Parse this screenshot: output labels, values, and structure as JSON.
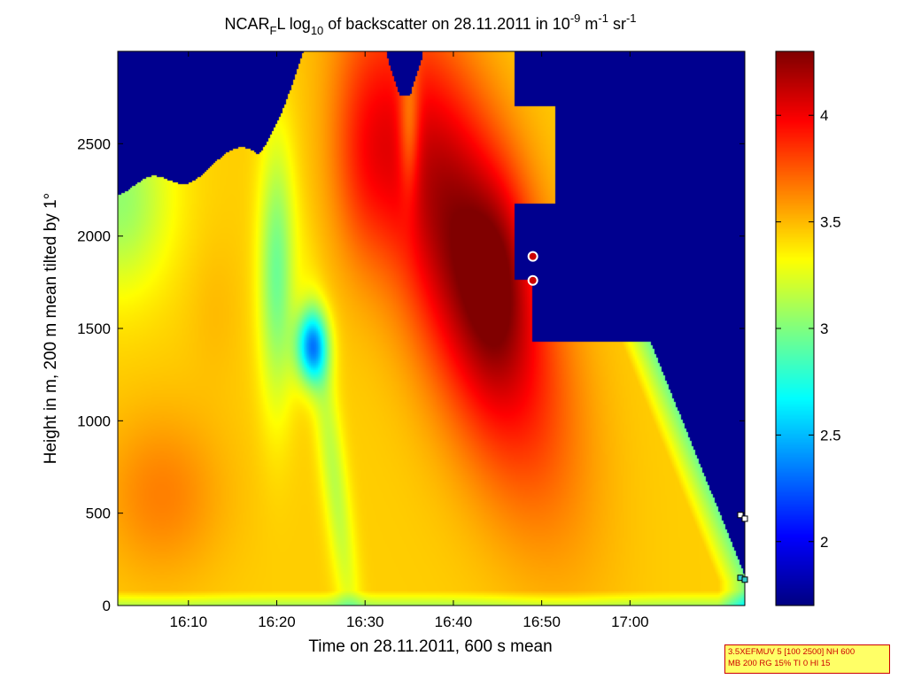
{
  "chart_data": {
    "type": "heatmap",
    "title": {
      "pre": "NCAR",
      "sub": "F",
      "mid": "L log",
      "sub2": "10",
      "post": " of backscatter on 28.11.2011 in 10",
      "sup1": "-9",
      "unit1": " m",
      "sup2": "-1",
      "unit2": " sr",
      "sup3": "-1"
    },
    "xlabel": "Time on 28.11.2011, 600 s mean",
    "ylabel": "Height in m, 200 m mean tilted by 1°",
    "xlim_minutes": [
      962,
      1033
    ],
    "ylim": [
      0,
      3000
    ],
    "xticks": [
      {
        "v": 970,
        "label": "16:10"
      },
      {
        "v": 980,
        "label": "16:20"
      },
      {
        "v": 990,
        "label": "16:30"
      },
      {
        "v": 1000,
        "label": "16:40"
      },
      {
        "v": 1010,
        "label": "16:50"
      },
      {
        "v": 1020,
        "label": "17:00"
      }
    ],
    "yticks": [
      0,
      500,
      1000,
      1500,
      2000,
      2500
    ],
    "colorbar": {
      "range": [
        1.7,
        4.3
      ],
      "ticks": [
        2,
        2.5,
        3,
        3.5,
        4
      ],
      "colormap": "jet"
    },
    "markers_circle": [
      {
        "t": 1009,
        "h": 1890
      },
      {
        "t": 1009,
        "h": 1760
      }
    ],
    "markers_square": [
      {
        "t": 1032.5,
        "h": 490,
        "color": "#ffffff"
      },
      {
        "t": 1033,
        "h": 470,
        "color": "#ffffff"
      },
      {
        "t": 1032.5,
        "h": 150,
        "color": "#33cccc"
      },
      {
        "t": 1033,
        "h": 140,
        "color": "#33cccc"
      }
    ],
    "info_lines": [
      "3.5XEFMUV 5 [100 2500] NH 600",
      "MB 200 RG 15% TI 0 HI 15"
    ]
  }
}
